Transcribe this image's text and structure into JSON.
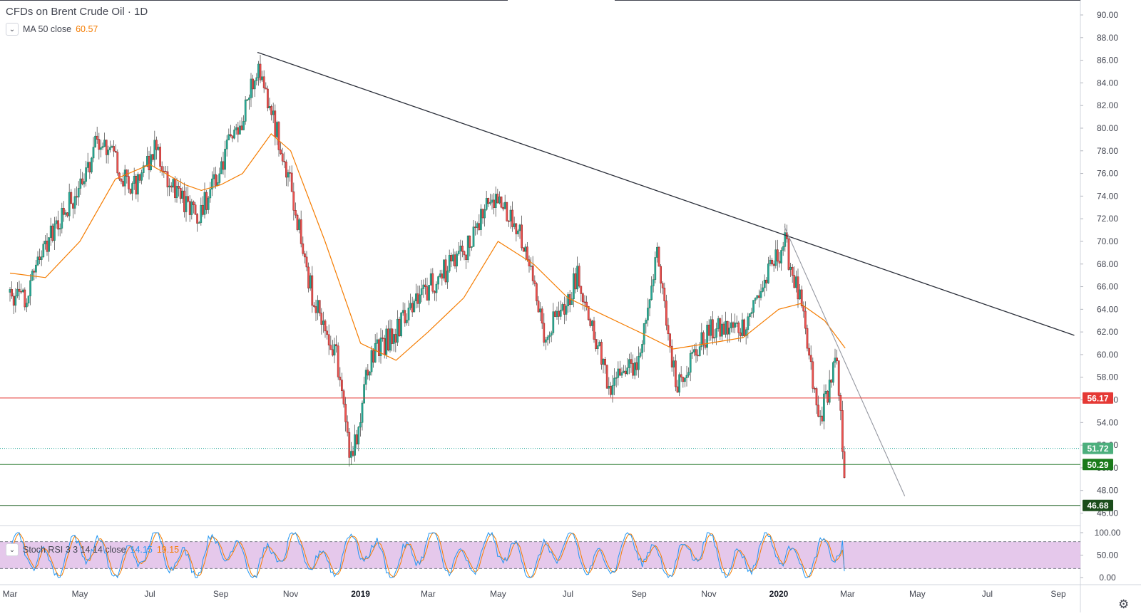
{
  "header": {
    "title": "CFDs on Brent Crude Oil · 1D",
    "ma_label": "MA 50 close",
    "ma_value": "60.57",
    "stoch_label": "Stoch RSI 3 3 14 14 close",
    "stoch_k": "14.15",
    "stoch_d": "19.15"
  },
  "icons": {
    "collapse": "chevron-down-icon",
    "settings": "gear-icon"
  },
  "colors": {
    "up": "#26a69a",
    "down": "#ef5350",
    "ma": "#f57c00",
    "red_level": "#ff0000",
    "green_level": "#1b5e20",
    "stoch_k": "#2196f3",
    "stoch_d": "#f57c00",
    "stoch_band": "#e1bee7"
  },
  "chart_data": [
    {
      "type": "candlestick",
      "title": "CFDs on Brent Crude Oil · 1D",
      "ylim": [
        45.7,
        91.0
      ],
      "y_ticks": [
        "90.00",
        "88.00",
        "86.00",
        "84.00",
        "82.00",
        "80.00",
        "78.00",
        "76.00",
        "74.00",
        "72.00",
        "70.00",
        "68.00",
        "66.00",
        "64.00",
        "62.00",
        "60.00",
        "58.00",
        "56.00",
        "54.00",
        "52.00",
        "50.00",
        "48.00",
        "46.00"
      ],
      "x_tick_labels": [
        "Mar",
        "May",
        "Jul",
        "Sep",
        "Nov",
        "2019",
        "Mar",
        "May",
        "Jul",
        "Sep",
        "Nov",
        "2020",
        "Mar",
        "May",
        "Jul",
        "Sep"
      ],
      "x_tick_dates": [
        "2018-03-01",
        "2018-05-01",
        "2018-07-01",
        "2018-09-01",
        "2018-11-01",
        "2019-01-01",
        "2019-03-01",
        "2019-05-01",
        "2019-07-01",
        "2019-09-01",
        "2019-11-01",
        "2020-01-01",
        "2020-03-01",
        "2020-05-01",
        "2020-07-01",
        "2020-09-01"
      ],
      "price_path": [
        [
          "2018-03-01",
          65.5
        ],
        [
          "2018-03-15",
          64.8
        ],
        [
          "2018-04-01",
          69.5
        ],
        [
          "2018-04-25",
          74.0
        ],
        [
          "2018-05-20",
          79.5
        ],
        [
          "2018-06-15",
          74.5
        ],
        [
          "2018-07-05",
          78.0
        ],
        [
          "2018-08-01",
          73.0
        ],
        [
          "2018-08-15",
          72.5
        ],
        [
          "2018-09-01",
          77.0
        ],
        [
          "2018-09-20",
          81.0
        ],
        [
          "2018-10-03",
          85.5
        ],
        [
          "2018-10-20",
          79.5
        ],
        [
          "2018-11-01",
          75.0
        ],
        [
          "2018-11-20",
          65.0
        ],
        [
          "2018-12-10",
          60.5
        ],
        [
          "2018-12-24",
          50.5
        ],
        [
          "2019-01-10",
          60.0
        ],
        [
          "2019-02-01",
          62.0
        ],
        [
          "2019-03-01",
          66.0
        ],
        [
          "2019-04-01",
          69.0
        ],
        [
          "2019-04-25",
          74.0
        ],
        [
          "2019-05-20",
          71.0
        ],
        [
          "2019-06-10",
          62.0
        ],
        [
          "2019-07-01",
          65.0
        ],
        [
          "2019-07-10",
          67.0
        ],
        [
          "2019-08-07",
          57.0
        ],
        [
          "2019-09-01",
          59.5
        ],
        [
          "2019-09-16",
          69.0
        ],
        [
          "2019-10-03",
          57.5
        ],
        [
          "2019-11-01",
          62.0
        ],
        [
          "2019-12-01",
          62.5
        ],
        [
          "2020-01-06",
          70.0
        ],
        [
          "2020-01-20",
          64.5
        ],
        [
          "2020-02-05",
          54.0
        ],
        [
          "2020-02-20",
          59.5
        ],
        [
          "2020-02-28",
          49.0
        ]
      ],
      "ma50_path": [
        [
          "2018-03-01",
          67.2
        ],
        [
          "2018-04-01",
          66.8
        ],
        [
          "2018-05-01",
          70.0
        ],
        [
          "2018-06-01",
          75.5
        ],
        [
          "2018-07-01",
          76.8
        ],
        [
          "2018-08-01",
          75.0
        ],
        [
          "2018-08-15",
          74.5
        ],
        [
          "2018-09-01",
          75.0
        ],
        [
          "2018-09-20",
          76.0
        ],
        [
          "2018-10-15",
          79.5
        ],
        [
          "2018-11-01",
          78.0
        ],
        [
          "2018-12-01",
          70.0
        ],
        [
          "2019-01-01",
          61.0
        ],
        [
          "2019-02-01",
          59.5
        ],
        [
          "2019-03-01",
          62.0
        ],
        [
          "2019-04-01",
          65.0
        ],
        [
          "2019-05-01",
          70.0
        ],
        [
          "2019-06-01",
          68.0
        ],
        [
          "2019-07-01",
          65.0
        ],
        [
          "2019-08-01",
          63.5
        ],
        [
          "2019-09-01",
          62.0
        ],
        [
          "2019-10-01",
          60.5
        ],
        [
          "2019-11-01",
          61.0
        ],
        [
          "2019-12-01",
          61.5
        ],
        [
          "2020-01-01",
          64.0
        ],
        [
          "2020-01-20",
          64.5
        ],
        [
          "2020-02-10",
          63.0
        ],
        [
          "2020-02-28",
          60.57
        ]
      ],
      "trendlines": [
        {
          "name": "major",
          "from": [
            "2018-10-03",
            86.7
          ],
          "to": [
            "2020-09-15",
            61.7
          ]
        },
        {
          "name": "minor",
          "from": [
            "2020-01-06",
            71.3
          ],
          "to": [
            "2020-04-20",
            47.5
          ]
        }
      ],
      "price_levels": [
        {
          "value": 56.17,
          "label": "56.17",
          "style": "red"
        },
        {
          "value": 51.72,
          "label": "51.72",
          "style": "teal-dotted"
        },
        {
          "value": 50.29,
          "label": "50.29",
          "style": "green"
        },
        {
          "value": 46.68,
          "label": "46.68",
          "style": "dark-green"
        }
      ],
      "ma_last": 60.57
    },
    {
      "type": "line",
      "title": "Stoch RSI 3 3 14 14 close",
      "ylim": [
        0,
        100
      ],
      "y_ticks": [
        "100.00",
        "50.00",
        "0.00"
      ],
      "bands": [
        20,
        80
      ],
      "series": [
        {
          "name": "%K",
          "last": 14.15
        },
        {
          "name": "%D",
          "last": 19.15
        }
      ]
    }
  ]
}
